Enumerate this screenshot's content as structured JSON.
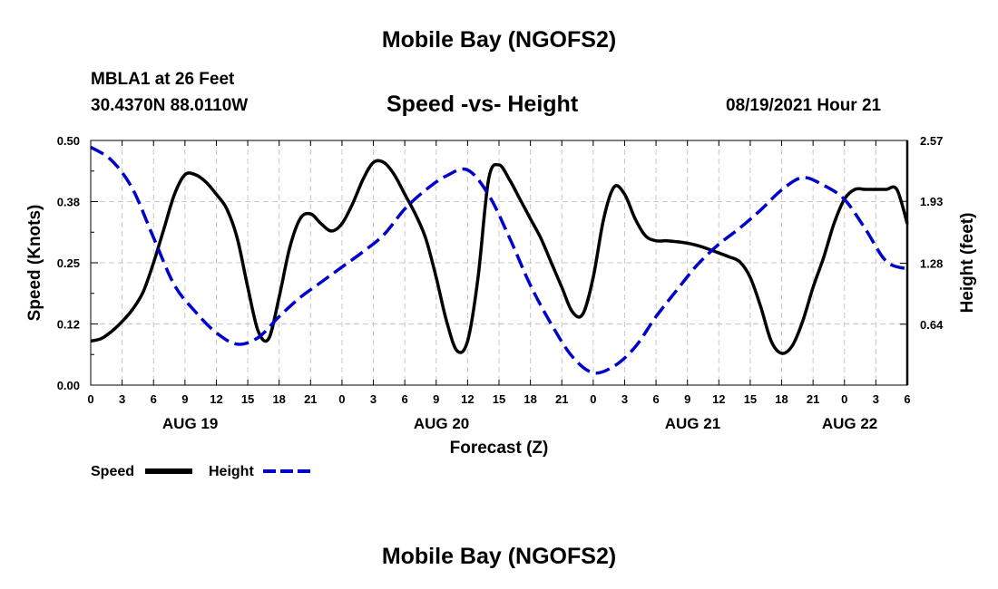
{
  "header": {
    "title": "Mobile Bay (NGOFS2)",
    "station": "MBLA1 at 26 Feet",
    "coords": "30.4370N  88.0110W",
    "subtitle": "Speed -vs- Height",
    "datestamp": "08/19/2021 Hour 21"
  },
  "footer": {
    "title": "Mobile Bay (NGOFS2)"
  },
  "chart_data": {
    "type": "line",
    "xlabel": "Forecast (Z)",
    "ylabel": "Speed (Knots)",
    "ylabel_right": "Height (feet)",
    "xlim": [
      0,
      78
    ],
    "ylim": [
      0,
      0.5
    ],
    "ylim_right": [
      0,
      2.57
    ],
    "grid": true,
    "legend_position": "bottom-left",
    "x_ticks": [
      0,
      3,
      6,
      9,
      12,
      15,
      18,
      21,
      24,
      27,
      30,
      33,
      36,
      39,
      42,
      45,
      48,
      51,
      54,
      57,
      60,
      63,
      66,
      69,
      72,
      75,
      78
    ],
    "x_tick_labels": [
      "0",
      "3",
      "6",
      "9",
      "12",
      "15",
      "18",
      "21",
      "0",
      "3",
      "6",
      "9",
      "12",
      "15",
      "18",
      "21",
      "0",
      "3",
      "6",
      "9",
      "12",
      "15",
      "18",
      "21",
      "0",
      "3",
      "6"
    ],
    "y_ticks": [
      0.0,
      0.125,
      0.25,
      0.375,
      0.5
    ],
    "y_tick_labels": [
      "0.00",
      "0.12",
      "0.25",
      "0.38",
      "0.50"
    ],
    "y_right_ticks": [
      0.64,
      1.28,
      1.93,
      2.57
    ],
    "y_right_tick_labels": [
      "0.64",
      "1.28",
      "1.93",
      "2.57"
    ],
    "date_labels": [
      {
        "x": 9.5,
        "label": "AUG 19"
      },
      {
        "x": 33.5,
        "label": "AUG 20"
      },
      {
        "x": 57.5,
        "label": "AUG 21"
      },
      {
        "x": 72.5,
        "label": "AUG 22"
      }
    ],
    "series": [
      {
        "name": "Speed",
        "axis": "left",
        "color": "#000000",
        "dash": "solid",
        "x": [
          0,
          1,
          2,
          3,
          4,
          5,
          6,
          7,
          8,
          9,
          10,
          11,
          12,
          13,
          14,
          15,
          16,
          17,
          18,
          19,
          20,
          21,
          22,
          23,
          24,
          25,
          26,
          27,
          28,
          29,
          30,
          31,
          32,
          33,
          34,
          35,
          36,
          37,
          38,
          39,
          40,
          41,
          42,
          43,
          44,
          45,
          46,
          47,
          48,
          49,
          50,
          51,
          52,
          53,
          54,
          55,
          56,
          57,
          58,
          59,
          60,
          61,
          62,
          63,
          64,
          65,
          66,
          67,
          68,
          69,
          70,
          71,
          72,
          73,
          74,
          75,
          76,
          77,
          78
        ],
        "values": [
          0.09,
          0.095,
          0.11,
          0.13,
          0.155,
          0.19,
          0.25,
          0.32,
          0.39,
          0.43,
          0.43,
          0.415,
          0.39,
          0.36,
          0.3,
          0.2,
          0.11,
          0.095,
          0.18,
          0.28,
          0.34,
          0.35,
          0.33,
          0.315,
          0.33,
          0.37,
          0.42,
          0.455,
          0.455,
          0.43,
          0.39,
          0.35,
          0.3,
          0.22,
          0.13,
          0.07,
          0.09,
          0.22,
          0.42,
          0.45,
          0.42,
          0.38,
          0.34,
          0.3,
          0.25,
          0.2,
          0.15,
          0.145,
          0.22,
          0.34,
          0.405,
          0.39,
          0.34,
          0.305,
          0.295,
          0.295,
          0.293,
          0.29,
          0.285,
          0.278,
          0.27,
          0.262,
          0.252,
          0.22,
          0.16,
          0.09,
          0.065,
          0.08,
          0.13,
          0.2,
          0.26,
          0.33,
          0.38,
          0.4,
          0.4,
          0.4,
          0.4,
          0.4,
          0.33
        ]
      },
      {
        "name": "Height",
        "axis": "right",
        "color": "#0000cc",
        "dash": "dashed",
        "x": [
          0,
          2,
          4,
          6,
          8,
          10,
          12,
          14,
          16,
          18,
          20,
          22,
          24,
          26,
          28,
          30,
          32,
          34,
          36,
          38,
          40,
          42,
          44,
          46,
          48,
          50,
          52,
          54,
          56,
          58,
          60,
          62,
          64,
          66,
          68,
          70,
          72,
          74,
          76,
          78
        ],
        "values": [
          2.5,
          2.36,
          2.06,
          1.55,
          1.05,
          0.77,
          0.55,
          0.43,
          0.5,
          0.72,
          0.92,
          1.08,
          1.24,
          1.4,
          1.58,
          1.85,
          2.05,
          2.2,
          2.26,
          2.0,
          1.55,
          1.05,
          0.64,
          0.3,
          0.13,
          0.2,
          0.4,
          0.72,
          1.0,
          1.27,
          1.48,
          1.65,
          1.84,
          2.05,
          2.18,
          2.1,
          1.95,
          1.64,
          1.3,
          1.22
        ]
      }
    ]
  }
}
